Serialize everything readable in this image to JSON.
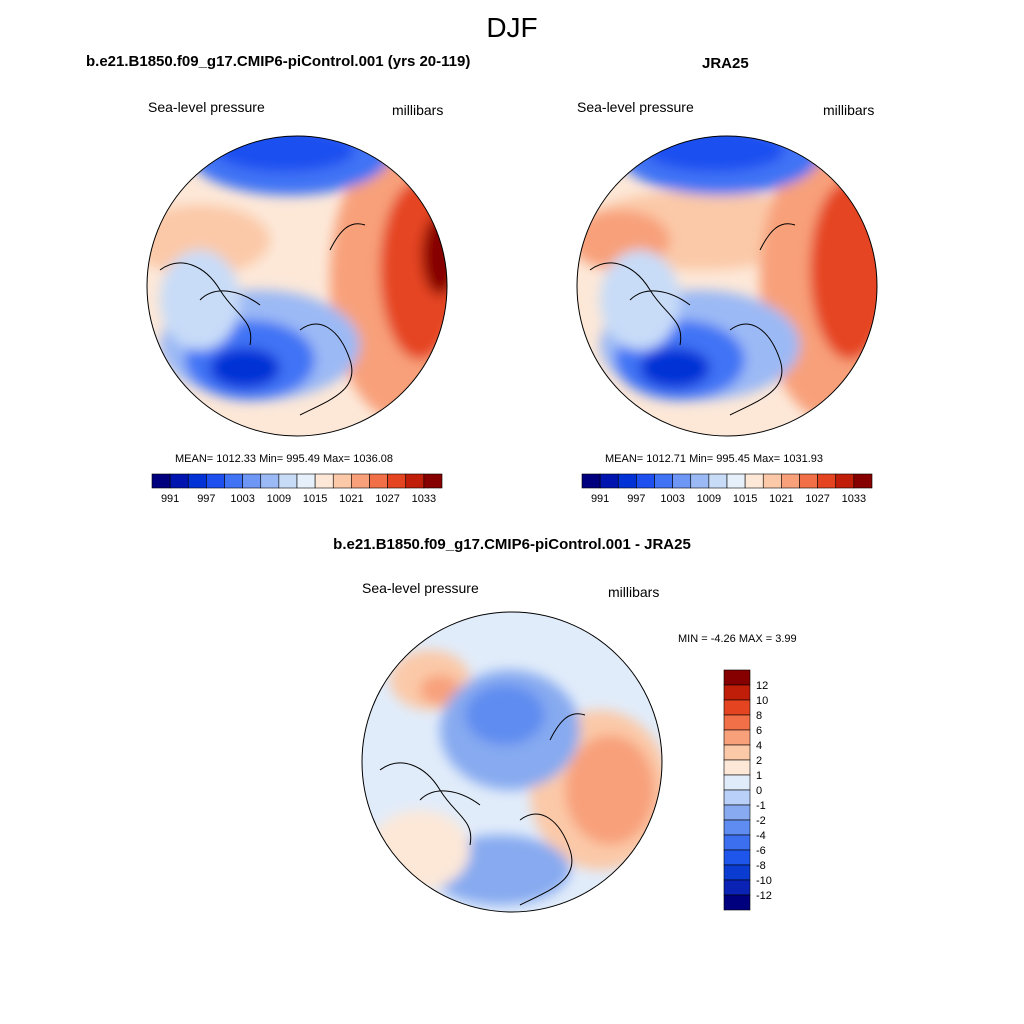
{
  "figure": {
    "title": "DJF"
  },
  "panels": [
    {
      "id": "model",
      "title": "b.e21.B1850.f09_g17.CMIP6-piControl.001 (yrs 20-119)",
      "variable": "Sea-level pressure",
      "units": "millibars",
      "stats_text": "MEAN= 1012.33  Min= 995.49  Max= 1036.08",
      "colorbar_labels": [
        "991",
        "997",
        "1003",
        "1009",
        "1015",
        "1021",
        "1027",
        "1033"
      ]
    },
    {
      "id": "obs",
      "title": "JRA25",
      "variable": "Sea-level pressure",
      "units": "millibars",
      "stats_text": "MEAN= 1012.71  Min= 995.45  Max= 1031.93",
      "colorbar_labels": [
        "991",
        "997",
        "1003",
        "1009",
        "1015",
        "1021",
        "1027",
        "1033"
      ]
    },
    {
      "id": "diff",
      "title": "b.e21.B1850.f09_g17.CMIP6-piControl.001 - JRA25",
      "variable": "Sea-level pressure",
      "units": "millibars",
      "stats_text": "MIN =  -4.26 MAX =   3.99",
      "colorbar_labels": [
        "12",
        "10",
        "8",
        "6",
        "4",
        "2",
        "1",
        "0",
        "-1",
        "-2",
        "-4",
        "-6",
        "-8",
        "-10",
        "-12"
      ]
    }
  ],
  "chart_data": [
    {
      "type": "heatmap",
      "title": "b.e21.B1850.f09_g17.CMIP6-piControl.001 (yrs 20-119)",
      "variable": "Sea-level pressure",
      "units": "millibars",
      "projection": "north polar stereographic",
      "mean": 1012.33,
      "min": 995.49,
      "max": 1036.08,
      "contour_levels": [
        991,
        994,
        997,
        1000,
        1003,
        1006,
        1009,
        1012,
        1015,
        1018,
        1021,
        1024,
        1027,
        1030,
        1033
      ],
      "colors": [
        "#00007f",
        "#0015b0",
        "#0032d6",
        "#1e50f0",
        "#4173f5",
        "#6e96f5",
        "#9bb9f5",
        "#c8dcf8",
        "#e6f0fa",
        "#fde8d8",
        "#fbc9a8",
        "#f8a07a",
        "#f27048",
        "#e54420",
        "#c01e08",
        "#870000"
      ]
    },
    {
      "type": "heatmap",
      "title": "JRA25",
      "variable": "Sea-level pressure",
      "units": "millibars",
      "projection": "north polar stereographic",
      "mean": 1012.71,
      "min": 995.45,
      "max": 1031.93,
      "contour_levels": [
        991,
        994,
        997,
        1000,
        1003,
        1006,
        1009,
        1012,
        1015,
        1018,
        1021,
        1024,
        1027,
        1030,
        1033
      ],
      "colors": [
        "#00007f",
        "#0015b0",
        "#0032d6",
        "#1e50f0",
        "#4173f5",
        "#6e96f5",
        "#9bb9f5",
        "#c8dcf8",
        "#e6f0fa",
        "#fde8d8",
        "#fbc9a8",
        "#f8a07a",
        "#f27048",
        "#e54420",
        "#c01e08",
        "#870000"
      ]
    },
    {
      "type": "heatmap",
      "title": "b.e21.B1850.f09_g17.CMIP6-piControl.001 - JRA25",
      "variable": "Sea-level pressure",
      "units": "millibars",
      "projection": "north polar stereographic",
      "min": -4.26,
      "max": 3.99,
      "contour_levels": [
        -12,
        -10,
        -8,
        -6,
        -4,
        -2,
        -1,
        0,
        1,
        2,
        4,
        6,
        8,
        10,
        12
      ],
      "colors": [
        "#00007f",
        "#0a23b4",
        "#0a3cd2",
        "#1e55eb",
        "#3c6ef0",
        "#5f8cf0",
        "#87aaf0",
        "#b9d0f8",
        "#e1ecfa",
        "#fde8d8",
        "#fbc9a8",
        "#f8a07a",
        "#f27048",
        "#e54420",
        "#c01e08",
        "#870000"
      ]
    }
  ]
}
